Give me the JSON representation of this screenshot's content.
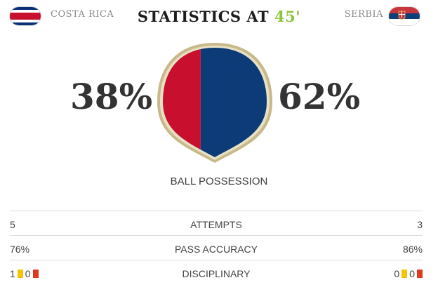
{
  "header": {
    "home_team": "COSTA RICA",
    "away_team": "SERBIA",
    "title_prefix": "STATISTICS AT",
    "minute": "45'"
  },
  "possession": {
    "home_percent": "38%",
    "away_percent": "62%",
    "home_value": 38,
    "away_value": 62,
    "label": "BALL POSSESSION"
  },
  "stats": [
    {
      "label": "ATTEMPTS",
      "home": "5",
      "away": "3"
    },
    {
      "label": "PASS ACCURACY",
      "home": "76%",
      "away": "86%"
    }
  ],
  "disciplinary": {
    "label": "DISCIPLINARY",
    "home_yellow": "1",
    "home_red": "0",
    "away_yellow": "0",
    "away_red": "0"
  },
  "colors": {
    "home": "#c8102e",
    "away": "#0c3b78",
    "ball_border": "#c8b98a",
    "minute": "#8cc63f",
    "yellow_card": "#f5c400",
    "red_card": "#e03a1e"
  },
  "icons": {
    "home_flag": "costa-rica-flag-icon",
    "away_flag": "serbia-flag-icon",
    "yellow_card": "yellow-card-icon",
    "red_card": "red-card-icon"
  }
}
